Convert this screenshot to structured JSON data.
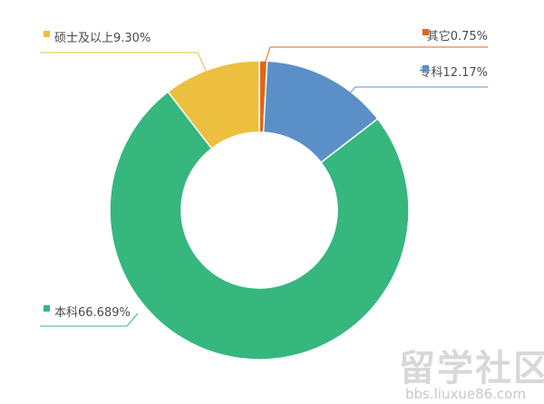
{
  "chart_data": {
    "type": "pie",
    "variant": "donut",
    "slices": [
      {
        "label": "其它",
        "percent": 0.75,
        "label_text": "其它0.75%",
        "color": "#e0661c"
      },
      {
        "label": "专科",
        "percent": 12.17,
        "label_text": "专科12.17%",
        "color": "#5b8fc8"
      },
      {
        "label": "本科",
        "percent": 66.689,
        "label_text": "本科66.689%",
        "color": "#35b77e"
      },
      {
        "label": "硕士及以上",
        "percent": 9.3,
        "label_text": "硕士及以上9.30%",
        "color": "#ecbf3f"
      }
    ],
    "legend": "none",
    "title": ""
  },
  "watermark": {
    "main": "留学社区",
    "sub": "bbs.liuxue86.com",
    "color": "#d0d0d0"
  }
}
